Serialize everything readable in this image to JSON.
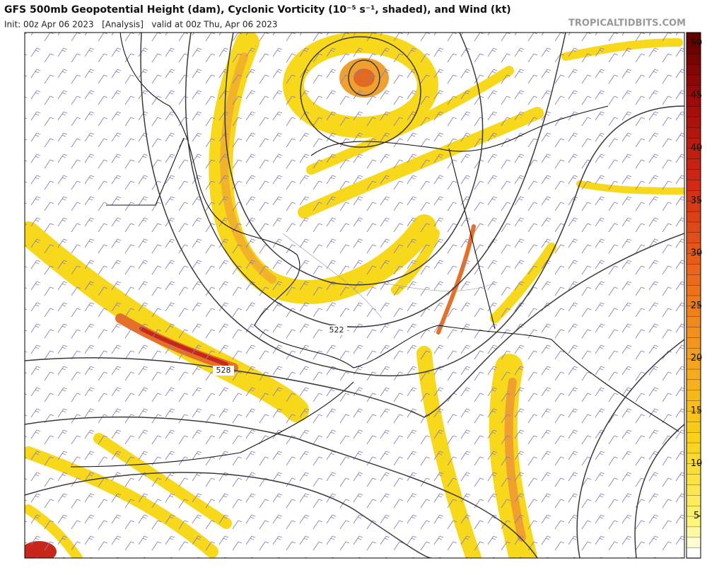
{
  "header": {
    "title": "GFS 500mb Geopotential Height (dam), Cyclonic Vorticity (10⁻⁵ s⁻¹, shaded), and Wind (kt)",
    "subtitle": "Init: 00z Apr 06 2023   [Analysis]   valid at 00z Thu, Apr 06 2023",
    "site": "TROPICALTIDBITS.COM"
  },
  "map": {
    "contour_labels": [
      "522",
      "528"
    ]
  },
  "colorbar": {
    "lim": [
      1,
      51
    ],
    "ticks": [
      5,
      10,
      15,
      20,
      25,
      30,
      35,
      40,
      45,
      50
    ]
  }
}
